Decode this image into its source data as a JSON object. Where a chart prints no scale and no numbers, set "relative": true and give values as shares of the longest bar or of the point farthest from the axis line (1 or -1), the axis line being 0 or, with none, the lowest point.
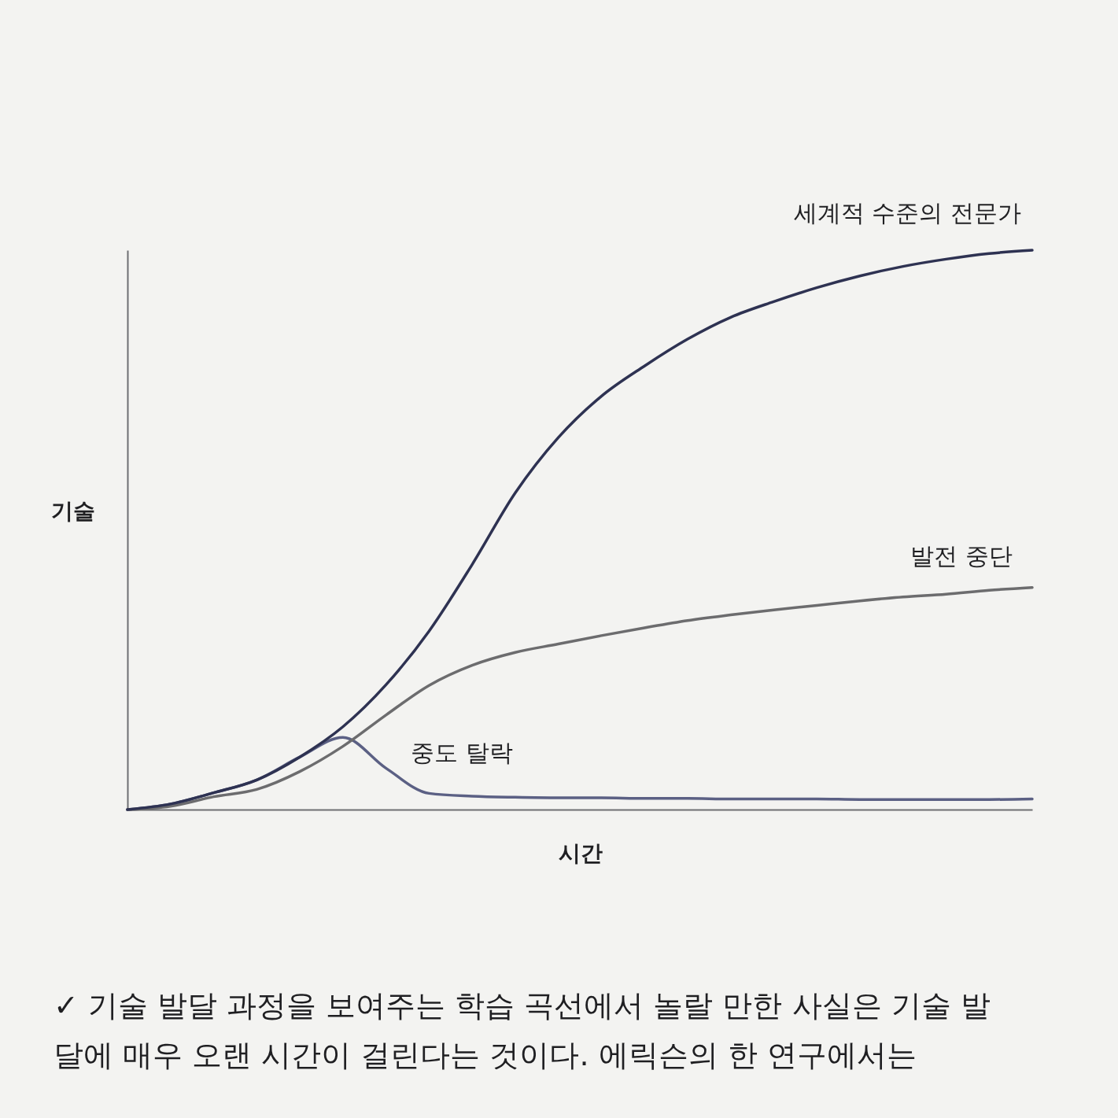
{
  "chart_data": {
    "type": "line",
    "relative": true,
    "xlabel": "시간",
    "ylabel": "기술",
    "categories": [
      null,
      null,
      null,
      null,
      null,
      null,
      null,
      null,
      null,
      null,
      null,
      null,
      null,
      null,
      null,
      null,
      null,
      null,
      null,
      null,
      null,
      null
    ],
    "series": [
      {
        "name": "세계적 수준의 전문가",
        "color": "#2e3252",
        "values": [
          0,
          0.01,
          0.03,
          0.053,
          0.094,
          0.148,
          0.223,
          0.319,
          0.438,
          0.566,
          0.665,
          0.739,
          0.793,
          0.841,
          0.88,
          0.908,
          0.933,
          0.954,
          0.971,
          0.984,
          0.994,
          1
        ]
      },
      {
        "name": "발전 중단",
        "color": "#6c6c6e",
        "values": [
          0,
          0.006,
          0.023,
          0.036,
          0.068,
          0.113,
          0.169,
          0.222,
          0.258,
          0.281,
          0.296,
          0.311,
          0.325,
          0.338,
          0.348,
          0.357,
          0.365,
          0.373,
          0.38,
          0.385,
          0.392,
          0.397
        ]
      },
      {
        "name": "중도 탈락",
        "color": "#5b6084",
        "values": [
          0,
          0.01,
          0.03,
          0.053,
          0.094,
          0.129,
          0.074,
          0.029,
          0.024,
          0.022,
          0.021,
          0.021,
          0.02,
          0.02,
          0.019,
          0.019,
          0.019,
          0.018,
          0.018,
          0.018,
          0.018,
          0.019
        ]
      }
    ],
    "annotations": [
      "✓ 기술 발달 과정을 보여주는 학습 곡선에서 놀랄 만한 사실은 기술 발달에 매우 오랜 시간이 걸린다는 것이다. 에릭슨의 한 연구에서는"
    ]
  }
}
